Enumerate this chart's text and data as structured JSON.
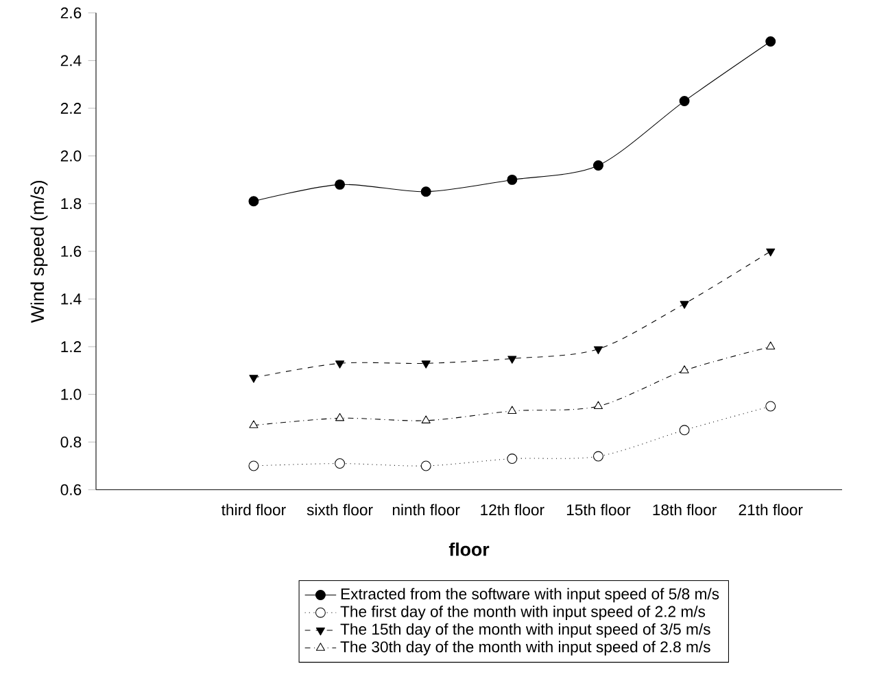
{
  "chart_data": {
    "type": "line",
    "xlabel": "floor",
    "ylabel": "Wind speed (m/s)",
    "categories": [
      "third floor",
      "sixth floor",
      "ninth floor",
      "12th floor",
      "15th floor",
      "18th floor",
      "21th floor"
    ],
    "series": [
      {
        "name": "Extracted from the software with input speed of 5/8 m/s",
        "color": "#000000",
        "marker": "circle",
        "line_style": "solid",
        "values": [
          1.81,
          1.88,
          1.85,
          1.9,
          1.96,
          2.23,
          2.48
        ]
      },
      {
        "name": "The first day of the month with input speed of 2.2 m/s",
        "color": "#000000",
        "marker": "circle",
        "line_style": "dotted",
        "values": [
          0.7,
          0.71,
          0.7,
          0.73,
          0.74,
          0.85,
          0.95
        ]
      },
      {
        "name": "The 15th day of the month with input speed of 3/5 m/s",
        "color": "#000000",
        "marker": "triangle_down",
        "line_style": "dashed",
        "values": [
          1.07,
          1.13,
          1.13,
          1.15,
          1.19,
          1.38,
          1.6
        ]
      },
      {
        "name": "The 30th day of the month with input speed of 2.8 m/s",
        "color": "#000000",
        "marker": "triangle",
        "line_style": "dashdotted",
        "values": [
          0.87,
          0.9,
          0.89,
          0.93,
          0.95,
          1.1,
          1.2
        ]
      }
    ],
    "ylim": [
      0.6,
      2.6
    ],
    "yticks": [
      {
        "value": 0.6,
        "label": "0.6"
      },
      {
        "value": 0.8,
        "label": "0.8"
      },
      {
        "value": 1.0,
        "label": "1.0"
      },
      {
        "value": 1.2,
        "label": "1.2"
      },
      {
        "value": 1.4,
        "label": "1.4"
      },
      {
        "value": 1.6,
        "label": "1.6"
      },
      {
        "value": 1.8,
        "label": "1.8"
      },
      {
        "value": 2.0,
        "label": "2.0"
      },
      {
        "value": 2.2,
        "label": "2.2"
      },
      {
        "value": 2.4,
        "label": "2.4"
      },
      {
        "value": 2.6,
        "label": "2.6"
      }
    ],
    "grid": false,
    "legend": "bottom"
  }
}
